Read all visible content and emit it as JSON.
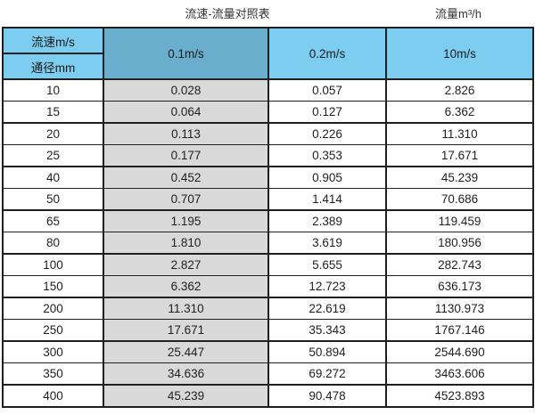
{
  "page": {
    "title_left": "流速-流量对照表",
    "title_right": "流量m³/h"
  },
  "colors": {
    "header_light_blue": "#7dcdf0",
    "header_dark_blue": "#6aaecd",
    "highlight_column_gray": "#d9d9d9",
    "border": "#1f1f1f",
    "background": "#ffffff"
  },
  "table": {
    "corner_top": "流速m/s",
    "corner_bottom": "通径mm",
    "columns": [
      "0.1m/s",
      "0.2m/s",
      "10m/s"
    ],
    "rows": [
      {
        "dn": "10",
        "v01": "0.028",
        "v02": "0.057",
        "v10": "2.826"
      },
      {
        "dn": "15",
        "v01": "0.064",
        "v02": "0.127",
        "v10": "6.362"
      },
      {
        "dn": "20",
        "v01": "0.113",
        "v02": "0.226",
        "v10": "11.310"
      },
      {
        "dn": "25",
        "v01": "0.177",
        "v02": "0.353",
        "v10": "17.671"
      },
      {
        "dn": "40",
        "v01": "0.452",
        "v02": "0.905",
        "v10": "45.239"
      },
      {
        "dn": "50",
        "v01": "0.707",
        "v02": "1.414",
        "v10": "70.686"
      },
      {
        "dn": "65",
        "v01": "1.195",
        "v02": "2.389",
        "v10": "119.459"
      },
      {
        "dn": "80",
        "v01": "1.810",
        "v02": "3.619",
        "v10": "180.956"
      },
      {
        "dn": "100",
        "v01": "2.827",
        "v02": "5.655",
        "v10": "282.743"
      },
      {
        "dn": "150",
        "v01": "6.362",
        "v02": "12.723",
        "v10": "636.173"
      },
      {
        "dn": "200",
        "v01": "11.310",
        "v02": "22.619",
        "v10": "1130.973"
      },
      {
        "dn": "250",
        "v01": "17.671",
        "v02": "35.343",
        "v10": "1767.146"
      },
      {
        "dn": "300",
        "v01": "25.447",
        "v02": "50.894",
        "v10": "2544.690"
      },
      {
        "dn": "350",
        "v01": "34.636",
        "v02": "69.272",
        "v10": "3463.606"
      },
      {
        "dn": "400",
        "v01": "45.239",
        "v02": "90.478",
        "v10": "4523.893"
      }
    ]
  },
  "chart_data": {
    "type": "table",
    "title": "流速-流量对照表",
    "value_unit_label": "流量m³/h",
    "row_header_label": "通径mm",
    "column_header_label": "流速m/s",
    "columns": [
      "通径mm",
      "0.1m/s",
      "0.2m/s",
      "10m/s"
    ],
    "rows": [
      [
        10,
        0.028,
        0.057,
        2.826
      ],
      [
        15,
        0.064,
        0.127,
        6.362
      ],
      [
        20,
        0.113,
        0.226,
        11.31
      ],
      [
        25,
        0.177,
        0.353,
        17.671
      ],
      [
        40,
        0.452,
        0.905,
        45.239
      ],
      [
        50,
        0.707,
        1.414,
        70.686
      ],
      [
        65,
        1.195,
        2.389,
        119.459
      ],
      [
        80,
        1.81,
        3.619,
        180.956
      ],
      [
        100,
        2.827,
        5.655,
        282.743
      ],
      [
        150,
        6.362,
        12.723,
        636.173
      ],
      [
        200,
        11.31,
        22.619,
        1130.973
      ],
      [
        250,
        17.671,
        35.343,
        1767.146
      ],
      [
        300,
        25.447,
        50.894,
        2544.69
      ],
      [
        350,
        34.636,
        69.272,
        3463.606
      ],
      [
        400,
        45.239,
        90.478,
        4523.893
      ]
    ]
  }
}
